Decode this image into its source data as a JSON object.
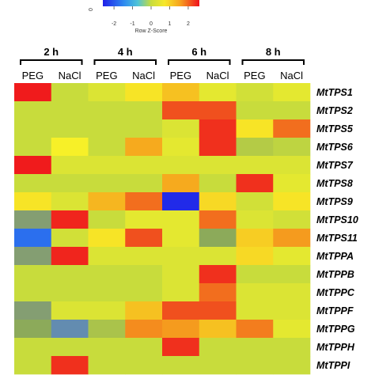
{
  "chart_data": {
    "type": "heatmap",
    "legend": {
      "title": "Row Z-Score",
      "ticks": [
        "-2",
        "-1",
        "0",
        "1",
        "2"
      ],
      "tick_values": [
        -2,
        -1,
        0,
        1,
        2
      ],
      "range": [
        -2.6,
        2.6
      ],
      "partial_label": "0"
    },
    "time_groups": [
      {
        "label": "2 h",
        "conditions": [
          "PEG",
          "NaCl"
        ]
      },
      {
        "label": "4 h",
        "conditions": [
          "PEG",
          "NaCl"
        ]
      },
      {
        "label": "6 h",
        "conditions": [
          "PEG",
          "NaCl"
        ]
      },
      {
        "label": "8 h",
        "conditions": [
          "PEG",
          "NaCl"
        ]
      }
    ],
    "rows": [
      "MtTPS1",
      "MtTPS2",
      "MtTPS5",
      "MtTPS6",
      "MtTPS7",
      "MtTPS8",
      "MtTPS9",
      "MtTPS10",
      "MtTPS11",
      "MtTPPA",
      "MtTPPB",
      "MtTPPC",
      "MtTPPF",
      "MtTPPG",
      "MtTPPH",
      "MtTPPI"
    ],
    "values": [
      [
        2.5,
        0.3,
        0.5,
        0.9,
        1.2,
        0.6,
        0.4,
        0.6
      ],
      [
        0.3,
        0.3,
        0.3,
        0.3,
        2.0,
        2.0,
        0.3,
        0.3
      ],
      [
        0.3,
        0.3,
        0.3,
        0.3,
        0.5,
        2.3,
        0.9,
        1.8
      ],
      [
        0.3,
        0.8,
        0.3,
        1.4,
        0.6,
        2.3,
        0.1,
        0.2
      ],
      [
        2.5,
        0.5,
        0.5,
        0.5,
        0.5,
        0.5,
        0.5,
        0.5
      ],
      [
        0.3,
        0.3,
        0.3,
        0.3,
        1.4,
        0.3,
        2.3,
        0.6
      ],
      [
        0.9,
        0.5,
        1.3,
        1.8,
        -2.5,
        1.0,
        0.4,
        0.9
      ],
      [
        -0.5,
        2.4,
        0.3,
        0.6,
        0.6,
        1.8,
        0.5,
        0.4
      ],
      [
        -1.8,
        0.4,
        0.9,
        2.0,
        0.6,
        -0.3,
        1.1,
        1.5
      ],
      [
        -0.5,
        2.4,
        0.5,
        0.5,
        0.5,
        0.5,
        1.0,
        0.6
      ],
      [
        0.3,
        0.3,
        0.3,
        0.3,
        0.5,
        2.3,
        0.3,
        0.3
      ],
      [
        0.3,
        0.3,
        0.3,
        0.3,
        0.5,
        1.8,
        0.5,
        0.5
      ],
      [
        -0.5,
        0.5,
        0.5,
        1.2,
        2.0,
        2.0,
        0.5,
        0.5
      ],
      [
        -0.3,
        -1.0,
        0.0,
        1.6,
        1.5,
        1.2,
        1.7,
        0.6
      ],
      [
        0.3,
        0.3,
        0.3,
        0.3,
        2.3,
        0.3,
        0.3,
        0.3
      ],
      [
        0.3,
        2.3,
        0.3,
        0.3,
        0.3,
        0.3,
        0.3,
        0.3
      ]
    ],
    "colors": {
      "low": "#2f35f0",
      "mid_low": "#4fb3e0",
      "mid": "#c8dc3c",
      "high_mid": "#f7e82a",
      "high": "#f6a21e",
      "max": "#f0101c"
    },
    "grid": false
  }
}
